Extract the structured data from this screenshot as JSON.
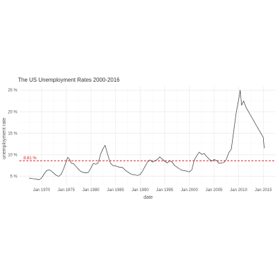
{
  "chart_data": {
    "type": "line",
    "title": "The US Unemployment Rates 2000-2016",
    "xlabel": "date",
    "ylabel": "unemployment rate",
    "xlim": [
      1965.5,
      2017.5
    ],
    "ylim": [
      3.0,
      26.0
    ],
    "x_ticks": [
      1970,
      1975,
      1980,
      1985,
      1990,
      1995,
      2000,
      2005,
      2010,
      2015
    ],
    "x_tick_labels": [
      "Jan 1970",
      "Jan 1975",
      "Jan 1980",
      "Jan 1985",
      "Jan 1990",
      "Jan 1995",
      "Jan 2000",
      "Jan 2005",
      "Jan 2010",
      "Jan 2015"
    ],
    "y_ticks": [
      5,
      10,
      15,
      20,
      25
    ],
    "y_tick_labels": [
      "5 %",
      "10 %",
      "15 %",
      "20 %",
      "25 %"
    ],
    "grid": true,
    "reference_line": {
      "y": 8.61,
      "label": "8.61 %",
      "color": "#e31a1c",
      "style": "dashed"
    },
    "series": [
      {
        "color": "#333333",
        "x": [
          1967.5,
          1968.0,
          1968.5,
          1969.0,
          1969.5,
          1970.0,
          1970.5,
          1971.0,
          1971.5,
          1972.0,
          1972.5,
          1973.0,
          1973.5,
          1974.0,
          1974.5,
          1975.0,
          1975.3,
          1975.7,
          1976.0,
          1976.5,
          1977.0,
          1977.5,
          1978.0,
          1978.5,
          1979.0,
          1979.5,
          1980.0,
          1980.5,
          1981.0,
          1981.5,
          1982.0,
          1982.5,
          1982.9,
          1983.3,
          1983.7,
          1984.0,
          1984.5,
          1985.0,
          1985.5,
          1986.0,
          1986.5,
          1987.0,
          1987.5,
          1988.0,
          1988.5,
          1989.0,
          1989.5,
          1990.0,
          1990.5,
          1991.0,
          1991.5,
          1992.0,
          1992.5,
          1993.0,
          1993.5,
          1994.0,
          1994.5,
          1995.0,
          1995.5,
          1996.0,
          1996.5,
          1997.0,
          1997.5,
          1998.0,
          1998.5,
          1999.0,
          1999.5,
          2000.0,
          2000.5,
          2001.0,
          2001.5,
          2002.0,
          2002.5,
          2003.0,
          2003.5,
          2004.0,
          2004.5,
          2005.0,
          2005.5,
          2006.0,
          2006.5,
          2007.0,
          2007.5,
          2008.0,
          2008.5,
          2009.0,
          2009.5,
          2010.0,
          2010.3,
          2010.6,
          2011.0,
          2011.5,
          2012.0,
          2012.5,
          2013.0,
          2013.5,
          2014.0,
          2014.5,
          2015.0,
          2015.2
        ],
        "y": [
          4.6,
          4.5,
          4.4,
          4.3,
          4.2,
          4.6,
          5.5,
          6.3,
          6.5,
          6.2,
          5.7,
          5.2,
          5.0,
          5.5,
          6.8,
          8.4,
          9.4,
          8.9,
          8.1,
          7.9,
          7.3,
          6.6,
          6.1,
          5.9,
          5.8,
          5.9,
          6.9,
          8.0,
          7.8,
          8.1,
          10.2,
          11.5,
          12.2,
          10.5,
          9.0,
          8.0,
          7.5,
          7.4,
          7.2,
          7.1,
          7.0,
          6.4,
          6.0,
          5.6,
          5.4,
          5.3,
          5.2,
          5.4,
          6.2,
          7.3,
          8.3,
          8.8,
          8.3,
          8.6,
          8.9,
          9.5,
          9.0,
          8.5,
          8.1,
          8.6,
          8.3,
          7.5,
          7.1,
          6.7,
          6.4,
          6.3,
          6.2,
          6.0,
          6.5,
          8.8,
          9.8,
          10.6,
          10.1,
          10.3,
          9.6,
          9.0,
          8.5,
          8.9,
          8.7,
          8.0,
          8.1,
          8.2,
          8.9,
          10.5,
          11.3,
          15.5,
          19.8,
          22.8,
          25.0,
          21.5,
          22.5,
          21.0,
          20.0,
          19.0,
          18.0,
          17.0,
          16.0,
          15.0,
          14.0,
          11.5
        ]
      }
    ]
  }
}
